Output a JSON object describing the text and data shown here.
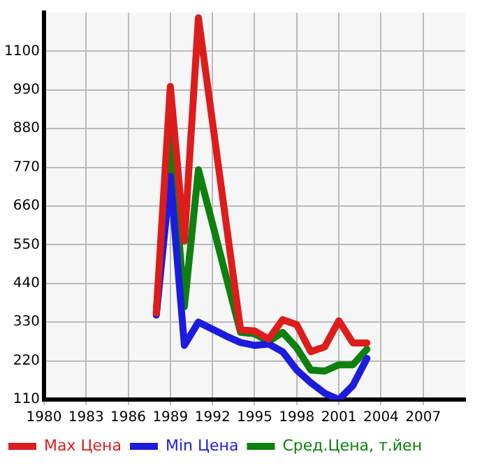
{
  "chart_data": {
    "type": "line",
    "x": [
      1988,
      1989,
      1990,
      1991,
      1992,
      1993,
      1994,
      1995,
      1996,
      1997,
      1998,
      1999,
      2000,
      2001,
      2002,
      2003
    ],
    "series": [
      {
        "name": "Max Цена",
        "color": "#dd1c1c",
        "values": [
          356,
          1000,
          561,
          1195,
          899,
          604,
          308,
          305,
          282,
          337,
          323,
          246,
          260,
          334,
          271,
          271
        ]
      },
      {
        "name": "Min Цена",
        "color": "#1c1cdd",
        "values": [
          350,
          744,
          264,
          330,
          310,
          290,
          272,
          264,
          268,
          246,
          194,
          158,
          128,
          110,
          150,
          227
        ]
      },
      {
        "name": "Сред.Цена, т.йен",
        "color": "#0d800d",
        "values": [
          356,
          880,
          374,
          763,
          610,
          455,
          301,
          297,
          275,
          301,
          257,
          194,
          191,
          209,
          209,
          253
        ]
      }
    ],
    "xlim": [
      1980,
      2010
    ],
    "xticks": [
      1980,
      1983,
      1986,
      1989,
      1992,
      1995,
      1998,
      2001,
      2004,
      2007
    ],
    "ylim": [
      110,
      1210
    ],
    "yticks": [
      110,
      220,
      330,
      440,
      550,
      660,
      770,
      880,
      990,
      1100
    ],
    "grid": true,
    "legend": "bottom",
    "marker": "none",
    "line_style": "solid"
  }
}
